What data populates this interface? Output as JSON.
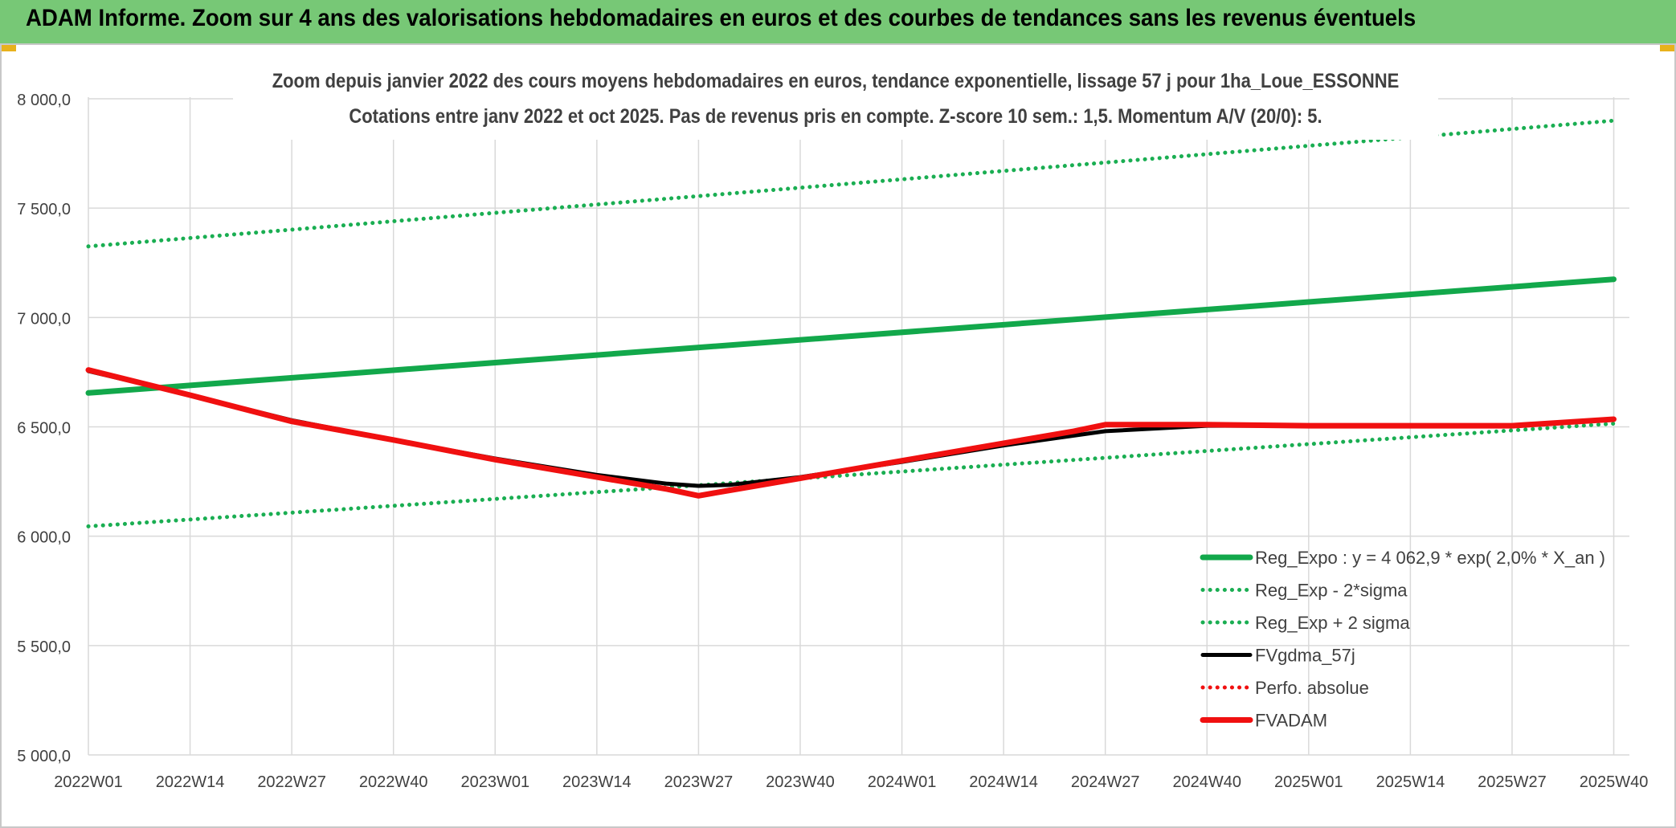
{
  "banner": {
    "title": "ADAM Informe. Zoom sur 4 ans des valorisations hebdomadaires en euros et des courbes de tendances sans les revenus éventuels"
  },
  "colors": {
    "banner_bg": "#77c876",
    "green": "#12a84b",
    "dotted_green": "#1aae52",
    "black": "#000000",
    "red": "#f01010",
    "grid": "#d9d9d9",
    "text": "#404040",
    "corner": "#e8b21c"
  },
  "chart_data": {
    "type": "line",
    "title": "Zoom depuis janvier 2022 des cours moyens hebdomadaires en euros, tendance exponentielle, lissage 57 j pour 1ha_Loue_ESSONNE",
    "subtitle": "Cotations entre janv 2022 et oct 2025. Pas de revenus pris en compte. Z-score 10 sem.: 1,5. Momentum A/V (20/0): 5.",
    "x_tick_labels": [
      "2022W01",
      "2022W14",
      "2022W27",
      "2022W40",
      "2023W01",
      "2023W14",
      "2023W27",
      "2023W40",
      "2024W01",
      "2024W14",
      "2024W27",
      "2024W40",
      "2025W01",
      "2025W14",
      "2025W27",
      "2025W40"
    ],
    "y_tick_labels": [
      "5 000,0",
      "5 500,0",
      "6 000,0",
      "6 500,0",
      "7 000,0",
      "7 500,0",
      "8 000,0"
    ],
    "y_ticks": [
      5000,
      5500,
      6000,
      6500,
      7000,
      7500,
      8000
    ],
    "ylim": [
      5000,
      8000
    ],
    "x_range_weeks": [
      0,
      197
    ],
    "legend_position": "bottom-right",
    "series": [
      {
        "name": "Reg_Expo : y = 4 062,9 * exp( 2,0% *  X_an )",
        "style": "solid-thick",
        "color": "#12a84b",
        "points": [
          [
            0,
            6655
          ],
          [
            195,
            7175
          ]
        ]
      },
      {
        "name": "Reg_Exp - 2*sigma",
        "style": "dotted",
        "color": "#1aae52",
        "points": [
          [
            0,
            6045
          ],
          [
            195,
            6515
          ]
        ]
      },
      {
        "name": "Reg_Exp + 2 sigma",
        "style": "dotted",
        "color": "#1aae52",
        "points": [
          [
            0,
            7325
          ],
          [
            195,
            7900
          ]
        ]
      },
      {
        "name": "FVgdma_57j",
        "style": "solid",
        "color": "#000000",
        "points": [
          [
            0,
            6755
          ],
          [
            13,
            6645
          ],
          [
            26,
            6530
          ],
          [
            39,
            6440
          ],
          [
            52,
            6355
          ],
          [
            65,
            6280
          ],
          [
            74,
            6240
          ],
          [
            78,
            6230
          ],
          [
            82,
            6235
          ],
          [
            91,
            6270
          ],
          [
            104,
            6340
          ],
          [
            117,
            6415
          ],
          [
            130,
            6480
          ],
          [
            143,
            6505
          ],
          [
            156,
            6505
          ],
          [
            169,
            6505
          ],
          [
            182,
            6505
          ],
          [
            195,
            6535
          ]
        ]
      },
      {
        "name": "Perfo. absolue",
        "style": "dotted",
        "color": "#f01010",
        "points": []
      },
      {
        "name": "FVADAM",
        "style": "solid-thick",
        "color": "#f01010",
        "points": [
          [
            0,
            6760
          ],
          [
            13,
            6645
          ],
          [
            26,
            6525
          ],
          [
            39,
            6440
          ],
          [
            52,
            6350
          ],
          [
            65,
            6270
          ],
          [
            74,
            6215
          ],
          [
            78,
            6185
          ],
          [
            82,
            6210
          ],
          [
            91,
            6265
          ],
          [
            104,
            6345
          ],
          [
            117,
            6425
          ],
          [
            126,
            6480
          ],
          [
            130,
            6510
          ],
          [
            143,
            6510
          ],
          [
            156,
            6505
          ],
          [
            169,
            6505
          ],
          [
            182,
            6505
          ],
          [
            195,
            6535
          ]
        ]
      }
    ]
  }
}
